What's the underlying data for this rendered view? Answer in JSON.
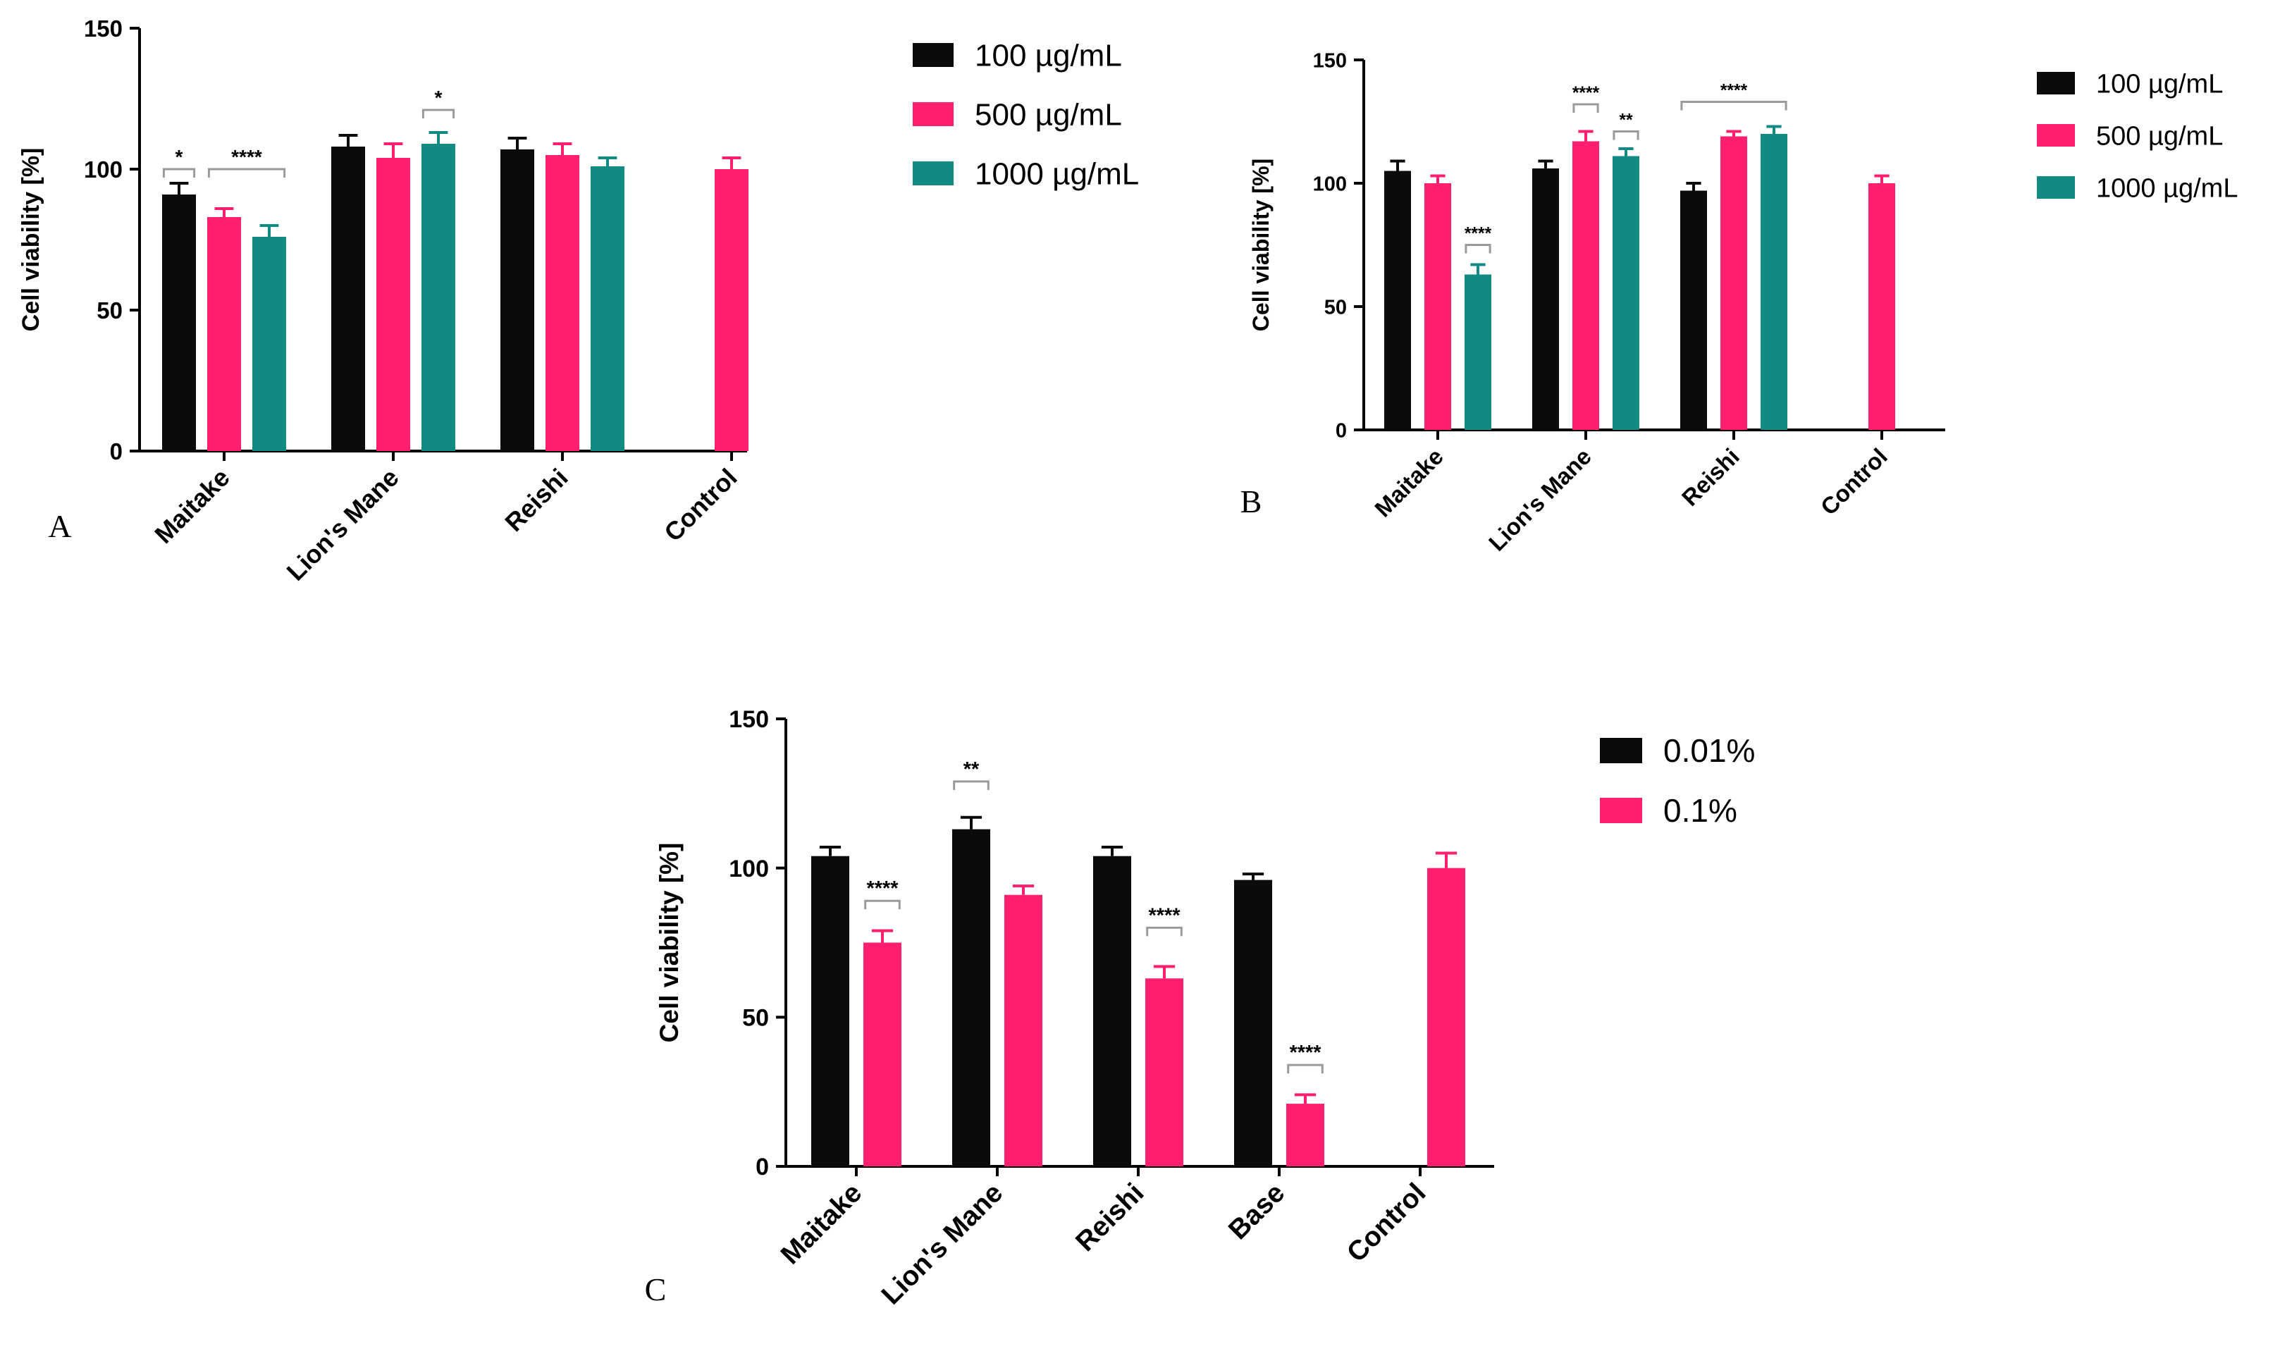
{
  "colors": {
    "series_black": "#0b0b0b",
    "series_pink": "#ff1f6e",
    "series_teal": "#128a84",
    "axis": "#000000",
    "bracket": "#9a9a9a"
  },
  "chart_data": [
    {
      "type": "bar",
      "panel_label": "A",
      "ylabel": "Cell viability [%]",
      "xlabel": "",
      "ylim": [
        0,
        150
      ],
      "yticks": [
        "0",
        "50",
        "100",
        "150"
      ],
      "categories": [
        "Maitake",
        "Lion's Mane",
        "Reishi",
        "Control"
      ],
      "legend_position": "right",
      "series": [
        {
          "name": "100 µg/mL",
          "color": "#0b0b0b",
          "values": [
            91,
            108,
            107,
            null
          ],
          "errors": [
            4,
            4,
            4,
            null
          ]
        },
        {
          "name": "500 µg/mL",
          "color": "#ff1f6e",
          "values": [
            83,
            104,
            105,
            100
          ],
          "errors": [
            3,
            5,
            4,
            4
          ]
        },
        {
          "name": "1000 µg/mL",
          "color": "#128a84",
          "values": [
            76,
            109,
            101,
            null
          ],
          "errors": [
            4,
            4,
            3,
            null
          ]
        }
      ],
      "annotations": [
        {
          "text": "*",
          "category": 0,
          "from_series": 0,
          "to_series": 0,
          "y": 100
        },
        {
          "text": "****",
          "category": 0,
          "from_series": 1,
          "to_series": 2,
          "y": 100
        },
        {
          "text": "*",
          "category": 1,
          "from_series": 2,
          "to_series": 2,
          "y": 121
        }
      ]
    },
    {
      "type": "bar",
      "panel_label": "B",
      "ylabel": "Cell viability [%]",
      "xlabel": "",
      "ylim": [
        0,
        150
      ],
      "yticks": [
        "0",
        "50",
        "100",
        "150"
      ],
      "categories": [
        "Maitake",
        "Lion's Mane",
        "Reishi",
        "Control"
      ],
      "legend_position": "right",
      "series": [
        {
          "name": "100 µg/mL",
          "color": "#0b0b0b",
          "values": [
            105,
            106,
            97,
            null
          ],
          "errors": [
            4,
            3,
            3,
            null
          ]
        },
        {
          "name": "500 µg/mL",
          "color": "#ff1f6e",
          "values": [
            100,
            117,
            119,
            100
          ],
          "errors": [
            3,
            4,
            2,
            3
          ]
        },
        {
          "name": "1000 µg/mL",
          "color": "#128a84",
          "values": [
            63,
            111,
            120,
            null
          ],
          "errors": [
            4,
            3,
            3,
            null
          ]
        }
      ],
      "annotations": [
        {
          "text": "****",
          "category": 0,
          "from_series": 2,
          "to_series": 2,
          "y": 75
        },
        {
          "text": "****",
          "category": 1,
          "from_series": 1,
          "to_series": 1,
          "y": 132
        },
        {
          "text": "**",
          "category": 1,
          "from_series": 2,
          "to_series": 2,
          "y": 121
        },
        {
          "text": "****",
          "category": 2,
          "from_series": 0,
          "to_series": 2,
          "y": 133
        }
      ]
    },
    {
      "type": "bar",
      "panel_label": "C",
      "ylabel": "Cell viability [%]",
      "xlabel": "",
      "ylim": [
        0,
        150
      ],
      "yticks": [
        "0",
        "50",
        "100",
        "150"
      ],
      "categories": [
        "Maitake",
        "Lion's Mane",
        "Reishi",
        "Base",
        "Control"
      ],
      "legend_position": "right",
      "series": [
        {
          "name": "0.01%",
          "color": "#0b0b0b",
          "values": [
            104,
            113,
            104,
            96,
            null
          ],
          "errors": [
            3,
            4,
            3,
            2,
            null
          ]
        },
        {
          "name": "0.1%",
          "color": "#ff1f6e",
          "values": [
            75,
            91,
            63,
            21,
            100
          ],
          "errors": [
            4,
            3,
            4,
            3,
            5
          ]
        }
      ],
      "annotations": [
        {
          "text": "****",
          "category": 0,
          "from_series": 1,
          "to_series": 1,
          "y": 89
        },
        {
          "text": "**",
          "category": 1,
          "from_series": 0,
          "to_series": 0,
          "y": 129
        },
        {
          "text": "****",
          "category": 2,
          "from_series": 1,
          "to_series": 1,
          "y": 80
        },
        {
          "text": "****",
          "category": 3,
          "from_series": 1,
          "to_series": 1,
          "y": 34
        }
      ]
    }
  ]
}
